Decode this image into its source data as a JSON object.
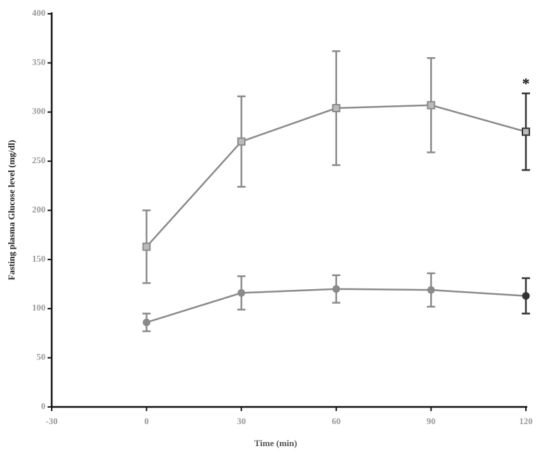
{
  "chart_data": {
    "type": "line",
    "xlabel": "Time (min)",
    "ylabel": "Fasting plasma Glucose level (mg/dl)",
    "x": [
      0,
      30,
      60,
      90,
      120
    ],
    "series": [
      {
        "color": "#8a8a8a",
        "marker": "square",
        "values": [
          163,
          270,
          304,
          307,
          280
        ],
        "errors": [
          37,
          46,
          58,
          48,
          39
        ]
      },
      {
        "color": "#8a8a8a",
        "marker": "circle",
        "values": [
          86,
          116,
          120,
          119,
          113
        ],
        "errors": [
          9,
          17,
          14,
          17,
          18
        ]
      }
    ],
    "xlim": [
      -30,
      120
    ],
    "xticks": [
      -30,
      0,
      30,
      60,
      90,
      120
    ],
    "ylim": [
      0,
      400
    ],
    "yticks": [
      0,
      50,
      100,
      150,
      200,
      250,
      300,
      350,
      400
    ],
    "annotations": [
      {
        "text": "*",
        "x": 120,
        "series": 0
      }
    ],
    "grid": false
  }
}
